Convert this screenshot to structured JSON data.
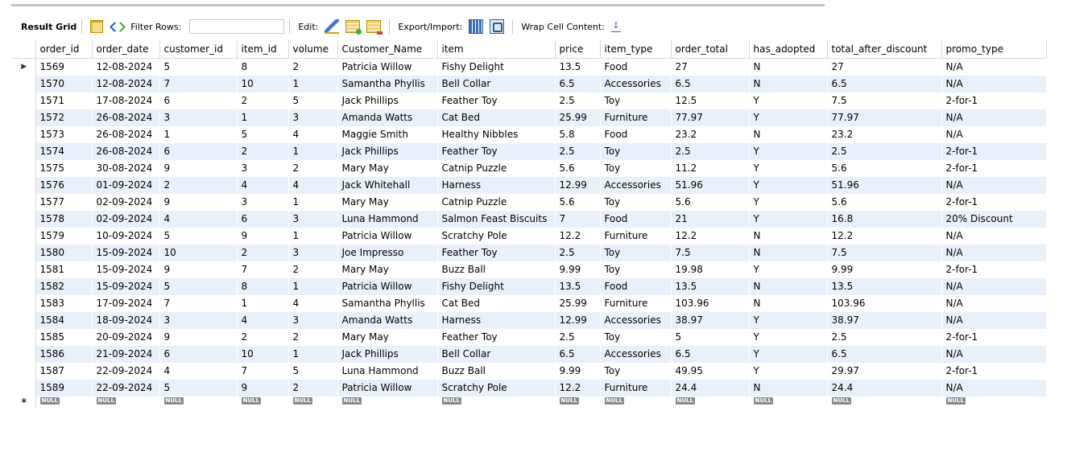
{
  "toolbar": {
    "result_grid": "Result Grid",
    "filter_rows": "Filter Rows:",
    "filter_value": "",
    "edit": "Edit:",
    "export_import": "Export/Import:",
    "wrap_cell_content": "Wrap Cell Content:"
  },
  "null_label": "NULL",
  "columns": [
    "order_id",
    "order_date",
    "customer_id",
    "item_id",
    "volume",
    "Customer_Name",
    "item",
    "price",
    "item_type",
    "order_total",
    "has_adopted",
    "total_after_discount",
    "promo_type"
  ],
  "rows": [
    [
      "1569",
      "12-08-2024",
      "5",
      "8",
      "2",
      "Patricia Willow",
      "Fishy Delight",
      "13.5",
      "Food",
      "27",
      "N",
      "27",
      "N/A"
    ],
    [
      "1570",
      "12-08-2024",
      "7",
      "10",
      "1",
      "Samantha Phyllis",
      "Bell Collar",
      "6.5",
      "Accessories",
      "6.5",
      "N",
      "6.5",
      "N/A"
    ],
    [
      "1571",
      "17-08-2024",
      "6",
      "2",
      "5",
      "Jack Phillips",
      "Feather Toy",
      "2.5",
      "Toy",
      "12.5",
      "Y",
      "7.5",
      "2-for-1"
    ],
    [
      "1572",
      "26-08-2024",
      "3",
      "1",
      "3",
      "Amanda Watts",
      "Cat Bed",
      "25.99",
      "Furniture",
      "77.97",
      "Y",
      "77.97",
      "N/A"
    ],
    [
      "1573",
      "26-08-2024",
      "1",
      "5",
      "4",
      "Maggie Smith",
      "Healthy Nibbles",
      "5.8",
      "Food",
      "23.2",
      "N",
      "23.2",
      "N/A"
    ],
    [
      "1574",
      "26-08-2024",
      "6",
      "2",
      "1",
      "Jack Phillips",
      "Feather Toy",
      "2.5",
      "Toy",
      "2.5",
      "Y",
      "2.5",
      "2-for-1"
    ],
    [
      "1575",
      "30-08-2024",
      "9",
      "3",
      "2",
      "Mary May",
      "Catnip Puzzle",
      "5.6",
      "Toy",
      "11.2",
      "Y",
      "5.6",
      "2-for-1"
    ],
    [
      "1576",
      "01-09-2024",
      "2",
      "4",
      "4",
      "Jack Whitehall",
      "Harness",
      "12.99",
      "Accessories",
      "51.96",
      "Y",
      "51.96",
      "N/A"
    ],
    [
      "1577",
      "02-09-2024",
      "9",
      "3",
      "1",
      "Mary May",
      "Catnip Puzzle",
      "5.6",
      "Toy",
      "5.6",
      "Y",
      "5.6",
      "2-for-1"
    ],
    [
      "1578",
      "02-09-2024",
      "4",
      "6",
      "3",
      "Luna Hammond",
      "Salmon Feast Biscuits",
      "7",
      "Food",
      "21",
      "Y",
      "16.8",
      "20% Discount"
    ],
    [
      "1579",
      "10-09-2024",
      "5",
      "9",
      "1",
      "Patricia Willow",
      "Scratchy Pole",
      "12.2",
      "Furniture",
      "12.2",
      "N",
      "12.2",
      "N/A"
    ],
    [
      "1580",
      "15-09-2024",
      "10",
      "2",
      "3",
      "Joe Impresso",
      "Feather Toy",
      "2.5",
      "Toy",
      "7.5",
      "N",
      "7.5",
      "N/A"
    ],
    [
      "1581",
      "15-09-2024",
      "9",
      "7",
      "2",
      "Mary May",
      "Buzz Ball",
      "9.99",
      "Toy",
      "19.98",
      "Y",
      "9.99",
      "2-for-1"
    ],
    [
      "1582",
      "15-09-2024",
      "5",
      "8",
      "1",
      "Patricia Willow",
      "Fishy Delight",
      "13.5",
      "Food",
      "13.5",
      "N",
      "13.5",
      "N/A"
    ],
    [
      "1583",
      "17-09-2024",
      "7",
      "1",
      "4",
      "Samantha Phyllis",
      "Cat Bed",
      "25.99",
      "Furniture",
      "103.96",
      "N",
      "103.96",
      "N/A"
    ],
    [
      "1584",
      "18-09-2024",
      "3",
      "4",
      "3",
      "Amanda Watts",
      "Harness",
      "12.99",
      "Accessories",
      "38.97",
      "Y",
      "38.97",
      "N/A"
    ],
    [
      "1585",
      "20-09-2024",
      "9",
      "2",
      "2",
      "Mary May",
      "Feather Toy",
      "2.5",
      "Toy",
      "5",
      "Y",
      "2.5",
      "2-for-1"
    ],
    [
      "1586",
      "21-09-2024",
      "6",
      "10",
      "1",
      "Jack Phillips",
      "Bell Collar",
      "6.5",
      "Accessories",
      "6.5",
      "Y",
      "6.5",
      "N/A"
    ],
    [
      "1587",
      "22-09-2024",
      "4",
      "7",
      "5",
      "Luna Hammond",
      "Buzz Ball",
      "9.99",
      "Toy",
      "49.95",
      "Y",
      "29.97",
      "2-for-1"
    ],
    [
      "1589",
      "22-09-2024",
      "5",
      "9",
      "2",
      "Patricia Willow",
      "Scratchy Pole",
      "12.2",
      "Furniture",
      "24.4",
      "N",
      "24.4",
      "N/A"
    ]
  ],
  "selected_row_index": 0,
  "icons": {
    "grid": "result-grid-icon",
    "refresh": "filter-refresh-icon",
    "edit_pencil": "edit-pencil-icon",
    "add_row": "add-row-icon",
    "delete_row": "delete-row-icon",
    "export": "export-icon",
    "import": "import-icon",
    "wrap": "wrap-cell-icon"
  }
}
